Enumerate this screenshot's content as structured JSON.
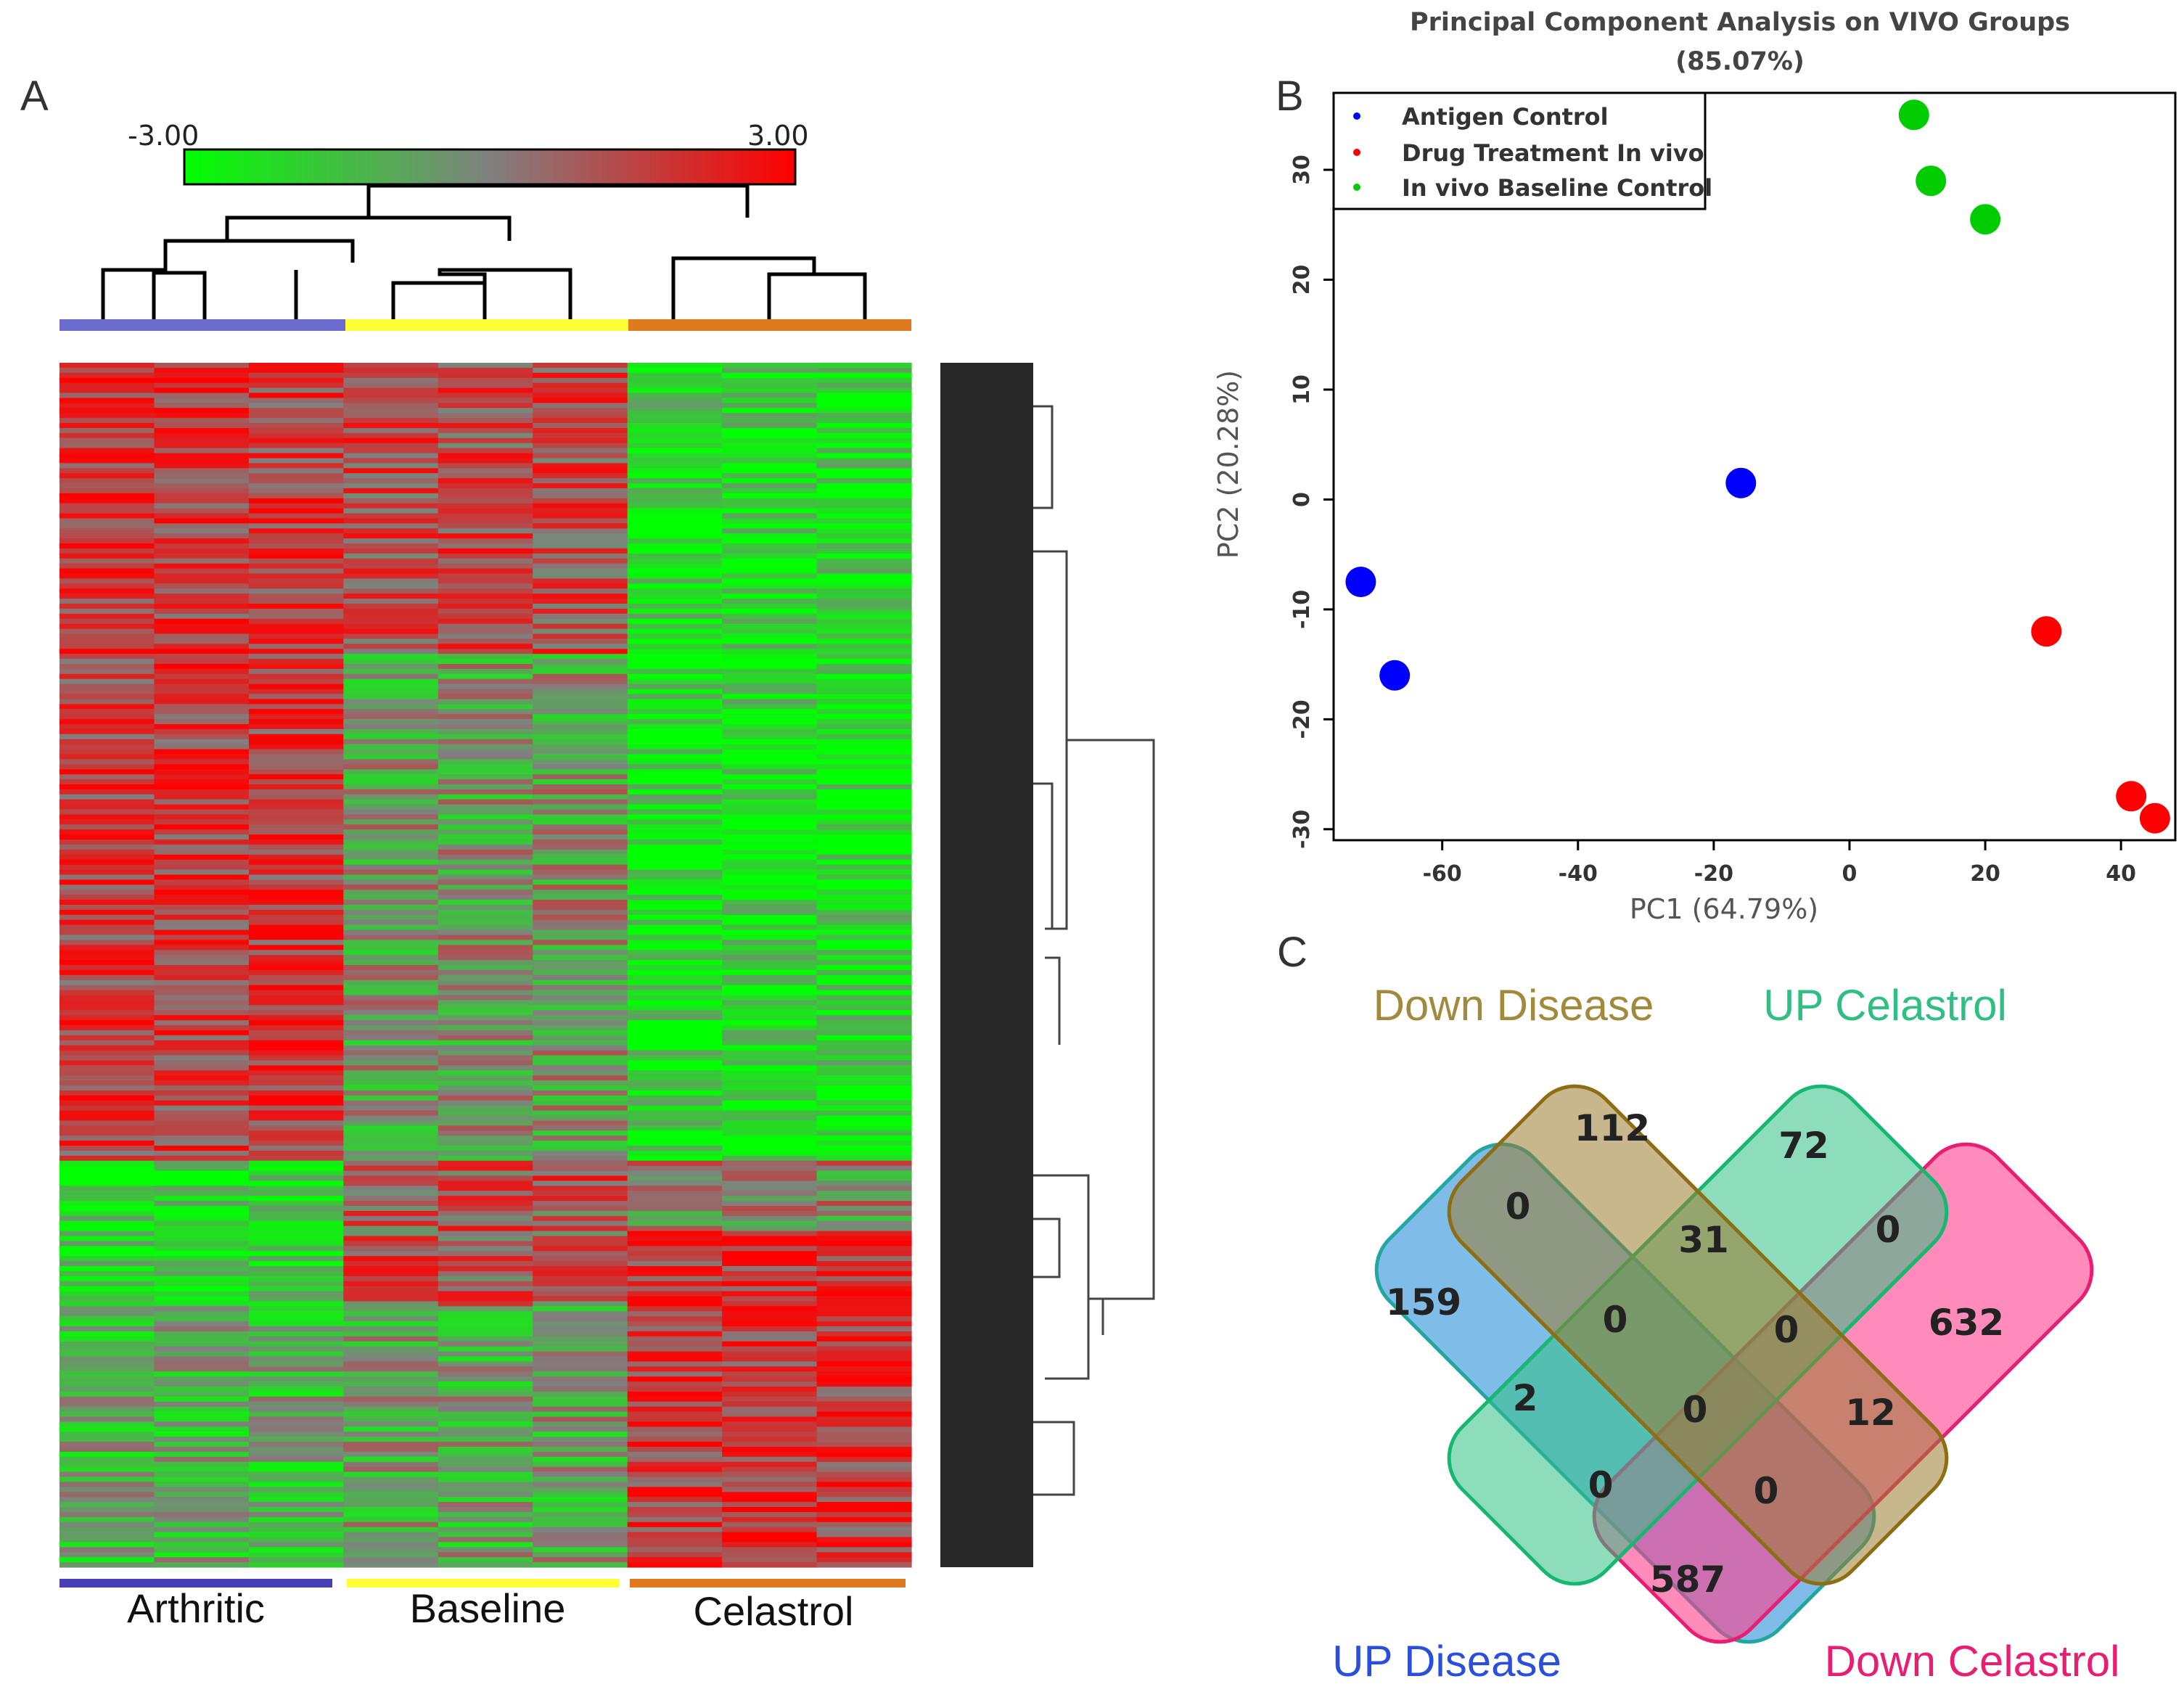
{
  "panels": {
    "a": "A",
    "b": "B",
    "c": "C"
  },
  "chart_data": [
    {
      "type": "heatmap",
      "panel": "A",
      "colorbar": {
        "min_label": "-3.00",
        "max_label": "3.00",
        "colors": [
          "#00ff00",
          "#808080",
          "#ff0000"
        ]
      },
      "groups": [
        {
          "name": "Arthritic",
          "color": "#6b6bd0"
        },
        {
          "name": "Baseline",
          "color": "#ffff33"
        },
        {
          "name": "Celastrol",
          "color": "#e07a1f"
        }
      ],
      "columns_per_group": 3
    },
    {
      "type": "scatter",
      "panel": "B",
      "title": "Principal Component Analysis on VIVO Groups",
      "subtitle": "(85.07%)",
      "xlabel": "PC1 (64.79%)",
      "ylabel": "PC2 (20.28%)",
      "xlim": [
        -76,
        48
      ],
      "ylim": [
        -31,
        37
      ],
      "xticks": [
        -60,
        -40,
        -20,
        0,
        20,
        40
      ],
      "yticks": [
        30,
        20,
        10,
        0,
        -10,
        -20,
        -30
      ],
      "legend_position": "top-left",
      "series": [
        {
          "name": "Antigen Control",
          "color": "#0000ff",
          "points": [
            [
              -72,
              -7.5
            ],
            [
              -67,
              -16
            ],
            [
              -16,
              1.5
            ]
          ]
        },
        {
          "name": "Drug Treatment In vivo",
          "color": "#ff0000",
          "points": [
            [
              29,
              -12
            ],
            [
              41.5,
              -27
            ],
            [
              45,
              -29
            ]
          ]
        },
        {
          "name": "In vivo Baseline Control",
          "color": "#00cc00",
          "points": [
            [
              9.5,
              35
            ],
            [
              12,
              29
            ],
            [
              20,
              25.5
            ]
          ]
        }
      ]
    },
    {
      "type": "venn",
      "panel": "C",
      "sets": [
        {
          "name": "Down Disease",
          "color": "#a28a3c"
        },
        {
          "name": "UP Celastrol",
          "color": "#2fbf83"
        },
        {
          "name": "UP Disease",
          "color": "#2a4fdc"
        },
        {
          "name": "Down Celastrol",
          "color": "#e91e73"
        }
      ],
      "regions": [
        {
          "sets": [
            "Down Disease"
          ],
          "value": "112"
        },
        {
          "sets": [
            "UP Celastrol"
          ],
          "value": "72"
        },
        {
          "sets": [
            "UP Disease"
          ],
          "value": "159"
        },
        {
          "sets": [
            "Down Celastrol"
          ],
          "value": "632"
        },
        {
          "sets": [
            "UP Disease",
            "Down Disease"
          ],
          "value": "0"
        },
        {
          "sets": [
            "Down Disease",
            "UP Celastrol"
          ],
          "value": "31"
        },
        {
          "sets": [
            "UP Celastrol",
            "Down Celastrol"
          ],
          "value": "0"
        },
        {
          "sets": [
            "UP Disease",
            "Down Disease",
            "UP Celastrol"
          ],
          "value": "0"
        },
        {
          "sets": [
            "Down Disease",
            "UP Celastrol",
            "Down Celastrol"
          ],
          "value": "0"
        },
        {
          "sets": [
            "UP Disease",
            "UP Celastrol"
          ],
          "value": "2"
        },
        {
          "sets": [
            "UP Disease",
            "Down Disease",
            "UP Celastrol",
            "Down Celastrol"
          ],
          "value": "0"
        },
        {
          "sets": [
            "Down Disease",
            "Down Celastrol"
          ],
          "value": "12"
        },
        {
          "sets": [
            "UP Disease",
            "UP Celastrol",
            "Down Celastrol"
          ],
          "value": "0"
        },
        {
          "sets": [
            "UP Disease",
            "Down Disease",
            "Down Celastrol"
          ],
          "value": "0"
        },
        {
          "sets": [
            "UP Disease",
            "Down Celastrol"
          ],
          "value": "587"
        }
      ]
    }
  ]
}
